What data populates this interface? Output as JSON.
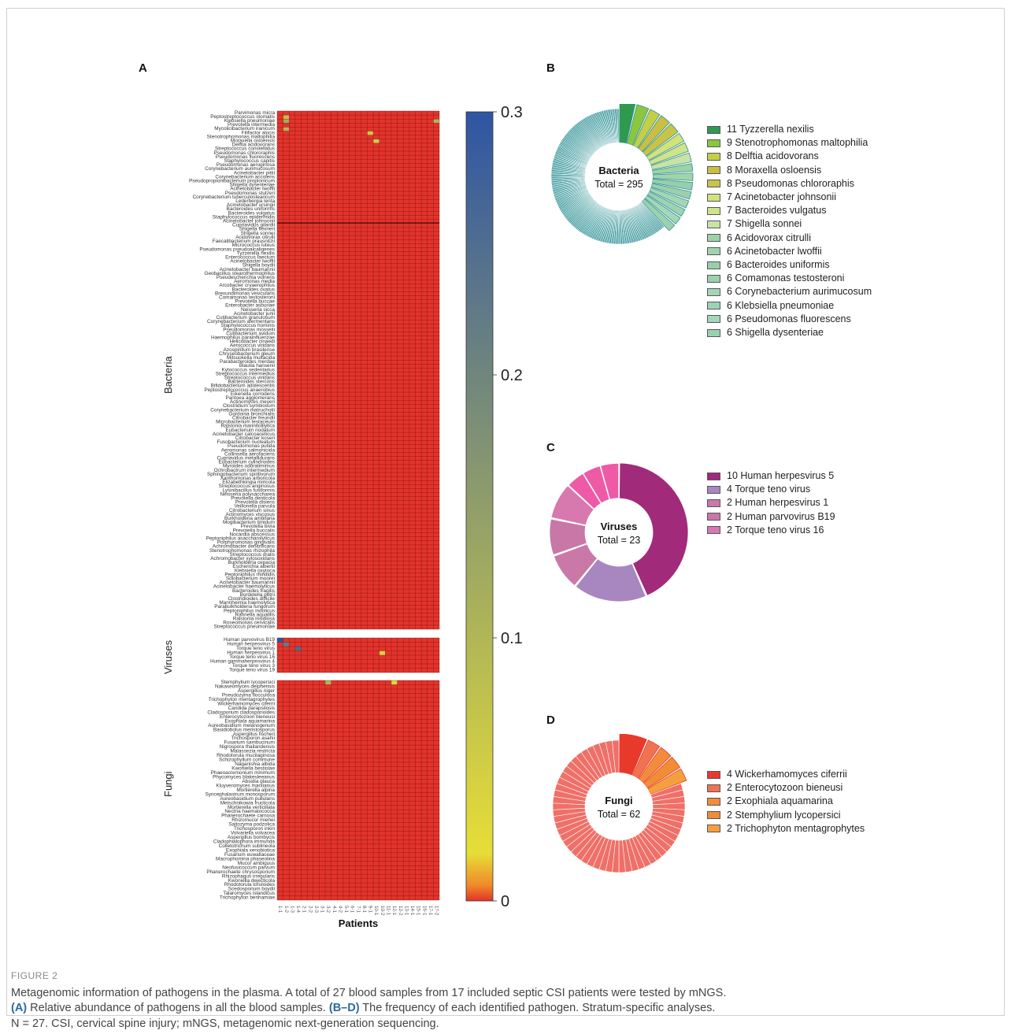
{
  "panels": {
    "a": "A",
    "b": "B",
    "c": "C",
    "d": "D"
  },
  "heatmap": {
    "x_label": "Patients",
    "colorbar_ticks": [
      "0.3",
      "0.2",
      "0.1",
      "0"
    ],
    "colors": {
      "low": "#e2342b",
      "mid": "#e6de37",
      "high": "#2f55a4",
      "grid": "#7a0c0c"
    },
    "group_labels": {
      "bacteria": "Bacteria",
      "viruses": "Viruses",
      "fungi": "Fungi"
    },
    "columns": [
      "1-1",
      "1-2",
      "1-3",
      "1-4",
      "2-1",
      "2-2",
      "2-3",
      "3-1",
      "3-2",
      "4-1",
      "4-2",
      "5-1",
      "6-1",
      "7-1",
      "8-1",
      "9-1",
      "10-1",
      "10-2",
      "11-1",
      "12-1",
      "12-2",
      "13-1",
      "14-1",
      "15-1",
      "16-1",
      "17-1",
      "17-2"
    ],
    "bacteria": [
      "Parvimonas micra",
      "Peptostreptococcus stomatis",
      "Klebsiella pneumoniae",
      "Prevotella intermedia",
      "Mycolicibacterium iranicum",
      "Filifactor alocis",
      "Stenotrophomonas maltophilia",
      "Moraxella osloensis",
      "Delftia acidovorans",
      "Streptococcus constellatus",
      "Pseudomonas chlororaphis",
      "Pseudomonas fluorescens",
      "Staphylococcus capitis",
      "Pseudomonas aeruginosa",
      "Corynebacterium aurimucosum",
      "Acinetobacter pittii",
      "Corynebacterium accolens",
      "Pseudopropionibacterium propionicum",
      "Shigella dysenteriae",
      "Acinetobacter lwoffii",
      "Pseudomonas stutzeri",
      "Corynebacterium tuberculostearicum",
      "Lederbergia lenta",
      "Acinetobacter ursingii",
      "Bacteroides uniformis",
      "Bacteroides vulgatus",
      "Staphylococcus epidermidis",
      "Acinetobacter johnsonii",
      "Cupriavidus gilardii",
      "Shigella flexneri",
      "Shigella sonnei",
      "Acidovorax citrulli",
      "Faecalibacterium prausnitzii",
      "Micrococcus luteus",
      "Pseudomonas pseudoalcaligenes",
      "Tyzzerella nexilis",
      "Enterococcus faecium",
      "Acinetobacter lwoffii",
      "Shigella boydii",
      "Acinetobacter baumannii",
      "Geobacillus stearothermophilus",
      "Pseudescherichia vulneris",
      "Aeromonas media",
      "Arcobacter cryaerophilus",
      "Bacteroides ovatus",
      "Brevundimonas vesicularis",
      "Comamonas testosteroni",
      "Prevotella buccae",
      "Enterobacter asburiae",
      "Neisseria sicca",
      "Acinetobacter junii",
      "Cutibacterium granulosum",
      "Corynebacterium afermentans",
      "Staphylococcus hominis",
      "Pseudomonas mosselii",
      "Cutibacterium avidum",
      "Haemophilus parainfluenzae",
      "Helicobacter cinaedi",
      "Aerococcus viridans",
      "Azospirillum brasilense",
      "Chryseobacterium gleum",
      "Mitsuokella multacida",
      "Parabacteroides merdae",
      "Blautia hansenii",
      "Kytococcus sedentarius",
      "Streptococcus intermedius",
      "Streptococcus viridans",
      "Bacteroides stercoris",
      "Bifidobacterium adolescentis",
      "Peptostreptococcus anaerobius",
      "Eikenella corrodens",
      "Pantoea agglomerans",
      "Actinomyces meyeri",
      "Clostridium symbiosum",
      "Corynebacterium matruchotii",
      "Gordonia bronchialis",
      "Citrobacter freundii",
      "Microbacterium testaceum",
      "Ralstonia mannitolilytica",
      "Eubacterium nodatum",
      "Acinetobacter calcoaceticus",
      "Citrobacter koseri",
      "Fusobacterium nucleatum",
      "Pseudomonas putida",
      "Aeromonas salmonicida",
      "Collinsella aerofaciens",
      "Cupriavidus metallidurans",
      "Eubacterium cylindroides",
      "Myroides odoratimimus",
      "Ochrobactrum intermedium",
      "Sphingobacterium spiritivorum",
      "Xanthomonas arboricola",
      "Elizabethkingia miricola",
      "Streptococcus anginosus",
      "Lysinibacillus fusiformis",
      "Neisseria polysaccharea",
      "Prevotella denticola",
      "Prevotella disiens",
      "Veillonella parvula",
      "Citrobacterium sinus",
      "Actinomyces viscosus",
      "Burkholderia ambifaria",
      "Mogibacterium timidum",
      "Prevotella bivia",
      "Prevotella buccalis",
      "Nocardia abscessus",
      "Peptoniphilus asaccharolyticus",
      "Porphyromonas gingivalis",
      "Achromobacter denitrificans",
      "Stenotrophomonas rhizophila",
      "Streptococcus oralis",
      "Achromobacter xylosoxidans",
      "Burkholderia cepacia",
      "Escherichia albertii",
      "Klebsiella oxytoca",
      "Peptoniphilus rhinitidis",
      "Solobacterium moorei",
      "Acinetobacter baumannii",
      "Acinetobacter haemolyticus",
      "Bacteroides fragilis",
      "Bordetella petrii",
      "Clostridioides difficile",
      "Mannheimia haemolytica",
      "Parabulkholderia fungorum",
      "Peptoniphilus indolicus",
      "Rahnella aquatilis",
      "Ralstonia insidiosa",
      "Roseomonas cervicalis",
      "Streptococcus pneumoniae"
    ],
    "viruses": [
      "Human parvovirus B19",
      "Human herpesvirus 5",
      "Torque teno virus",
      "Human herpesvirus 1",
      "Torque teno virus 16",
      "Human gammaherpesvirus 4",
      "Torque teno virus 3",
      "Torque teno virus 19"
    ],
    "fungi": [
      "Stemphylium lycopersici",
      "Nakaseomyces delphensis",
      "Aspergillus niger",
      "Pseudozyma flocculosa",
      "Trichophyton mentagrophytes",
      "Wickerhamomyces ciferrii",
      "Candida parapsilosis",
      "Cladosporium cladosporioides",
      "Enterocytozoon bieneusi",
      "Exophiala aquamarina",
      "Aureobasidium melanogenum",
      "Basidiobolus meristosporus",
      "Aspergillus fischeri",
      "Trichosporon asahii",
      "Fusarium sambucinum",
      "Nigrospora thailandensis",
      "Malassezia restricta",
      "Rhodotorula mucilaginosa",
      "Schizophyllum commune",
      "Naganishia albida",
      "Kwoniella bestiolae",
      "Phaeoacremonium minimum",
      "Phycomyces blakesleeanus",
      "Absidia glauca",
      "Kluyveromyces marxianus",
      "Mortierella alpina",
      "Syncephalastrum monosporum",
      "Aureobasidium pullulans",
      "Metschnikowia fructicola",
      "Mortierella verticillata",
      "Nectria haematococca",
      "Phanerochaete carnosa",
      "Rhizomucor miehei",
      "Saitozyma podzolica",
      "Trichosporon inkin",
      "Volvariella volvacea",
      "Aspergillus bombycis",
      "Cladophialophora immunda",
      "Colletotrichum sublineola",
      "Exophiala xenobiotica",
      "Fusarium euwallaceae",
      "Macrophomina phaseolina",
      "Mucor ambiguus",
      "Neofusicoccum parvum",
      "Phanerochaete chrysosporium",
      "Rhizophagus irregularis",
      "Kwoniella dejecticola",
      "Rhodotorula toruloides",
      "Scedosporium boydii",
      "Talaromyces islandicus",
      "Trichophyton benhamiae"
    ]
  },
  "chart_data": [
    {
      "type": "heatmap",
      "xlabel": "Patients",
      "ylabel": "",
      "zlim": [
        0,
        0.3
      ],
      "colorbar_ticks": [
        0,
        0.1,
        0.2,
        0.3
      ],
      "groups": [
        "Bacteria",
        "Viruses",
        "Fungi"
      ],
      "highlights": [
        {
          "group": "Bacteria",
          "row": 1,
          "col": 1,
          "value": 0.08
        },
        {
          "group": "Bacteria",
          "row": 2,
          "col": 1,
          "value": 0.12
        },
        {
          "group": "Bacteria",
          "row": 4,
          "col": 1,
          "value": 0.1
        },
        {
          "group": "Bacteria",
          "row": 2,
          "col": 26,
          "value": 0.1
        },
        {
          "group": "Bacteria",
          "row": 5,
          "col": 15,
          "value": 0.06
        },
        {
          "group": "Bacteria",
          "row": 7,
          "col": 16,
          "value": 0.05
        },
        {
          "group": "Viruses",
          "row": 0,
          "col": 0,
          "value": 0.3
        },
        {
          "group": "Viruses",
          "row": 1,
          "col": 1,
          "value": 0.22
        },
        {
          "group": "Viruses",
          "row": 2,
          "col": 3,
          "value": 0.25
        },
        {
          "group": "Viruses",
          "row": 3,
          "col": 17,
          "value": 0.04
        },
        {
          "group": "Fungi",
          "row": 0,
          "col": 8,
          "value": 0.1
        },
        {
          "group": "Fungi",
          "row": 0,
          "col": 19,
          "value": 0.03
        }
      ]
    },
    {
      "type": "pie",
      "title": "Bacteria",
      "subtitle": "Total = 295",
      "labels": [
        "Tyzzerella nexilis",
        "Stenotrophomonas maltophilia",
        "Delftia acidovorans",
        "Moraxella osloensis",
        "Pseudomonas chlororaphis",
        "Acinetobacter johnsonii",
        "Bacteroides vulgatus",
        "Shigella sonnei",
        "Acidovorax citrulli",
        "Acinetobacter lwoffii",
        "Bacteroides uniformis",
        "Comamonas testosteroni",
        "Corynebacterium aurimucosum",
        "Klebsiella pneumoniae",
        "Pseudomonas fluorescens",
        "Shigella dysenteriae"
      ],
      "values": [
        11,
        9,
        8,
        8,
        8,
        7,
        7,
        7,
        6,
        6,
        6,
        6,
        6,
        6,
        6,
        6
      ],
      "legend": [
        "11 Tyzzerella nexilis",
        "9 Stenotrophomonas maltophilia",
        "8 Delftia acidovorans",
        "8 Moraxella osloensis",
        "8 Pseudomonas chlororaphis",
        "7 Acinetobacter johnsonii",
        "7 Bacteroides vulgatus",
        "7 Shigella sonnei",
        "6 Acidovorax citrulli",
        "6 Acinetobacter lwoffii",
        "6 Bacteroides uniformis",
        "6 Comamonas testosteroni",
        "6 Corynebacterium aurimucosum",
        "6 Klebsiella pneumoniae",
        "6 Pseudomonas fluorescens",
        "6 Shigella dysenteriae"
      ],
      "colors": [
        "#2f9a4e",
        "#8cc63f",
        "#c4cf45",
        "#cbbf43",
        "#c9c447",
        "#d4e27a",
        "#cfe389",
        "#c8e3a3",
        "#9ed2a6",
        "#a2d4ac",
        "#98cfab",
        "#9ccfac",
        "#a4d5b4",
        "#9dd2b2",
        "#a6d6b8",
        "#9cd1b0"
      ],
      "rest_color": "#2a8f93",
      "total": 295
    },
    {
      "type": "pie",
      "title": "Viruses",
      "subtitle": "Total = 23",
      "labels": [
        "Human herpesvirus 5",
        "Torque teno virus",
        "Human herpesvirus 1",
        "Human parvovirus B19",
        "Torque teno virus 16"
      ],
      "values": [
        10,
        4,
        2,
        2,
        2
      ],
      "legend": [
        "10 Human herpesvirus 5",
        "4 Torque teno virus",
        "2 Human herpesvirus 1",
        "2 Human parvovirus B19",
        "2 Torque teno virus 16"
      ],
      "colors": [
        "#a22a7a",
        "#a886c0",
        "#c978a8",
        "#c977a7",
        "#d778ae"
      ],
      "rest_color": "#ee5aa6",
      "total": 23
    },
    {
      "type": "pie",
      "title": "Fungi",
      "subtitle": "Total = 62",
      "labels": [
        "Wickerhamomyces ciferrii",
        "Enterocytozoon bieneusi",
        "Exophiala aquamarina",
        "Stemphylium lycopersici",
        "Trichophyton mentagrophytes"
      ],
      "values": [
        4,
        2,
        2,
        2,
        2
      ],
      "legend": [
        "4 Wickerhamomyces ciferrii",
        "2 Enterocytozoon bieneusi",
        "2 Exophiala aquamarina",
        "2 Stemphylium lycopersici",
        "2 Trichophyton mentagrophytes"
      ],
      "colors": [
        "#e8392b",
        "#ef7350",
        "#f28c3c",
        "#f08d35",
        "#f5a03e"
      ],
      "rest_color": "#ee7068",
      "total": 62
    }
  ],
  "caption": {
    "figure": "FIGURE 2",
    "line1": "Metagenomic information of pathogens in the plasma. A total of 27 blood samples from 17 included septic CSI patients were tested by mNGS.",
    "a_tag": "(A)",
    "a_text": " Relative abundance of pathogens in all the blood samples. ",
    "bd_tag": "(B–D)",
    "bd_text": " The frequency of each identified pathogen. Stratum-specific analyses.",
    "line3": "N = 27. CSI, cervical spine injury; mNGS, metagenomic next-generation sequencing."
  }
}
